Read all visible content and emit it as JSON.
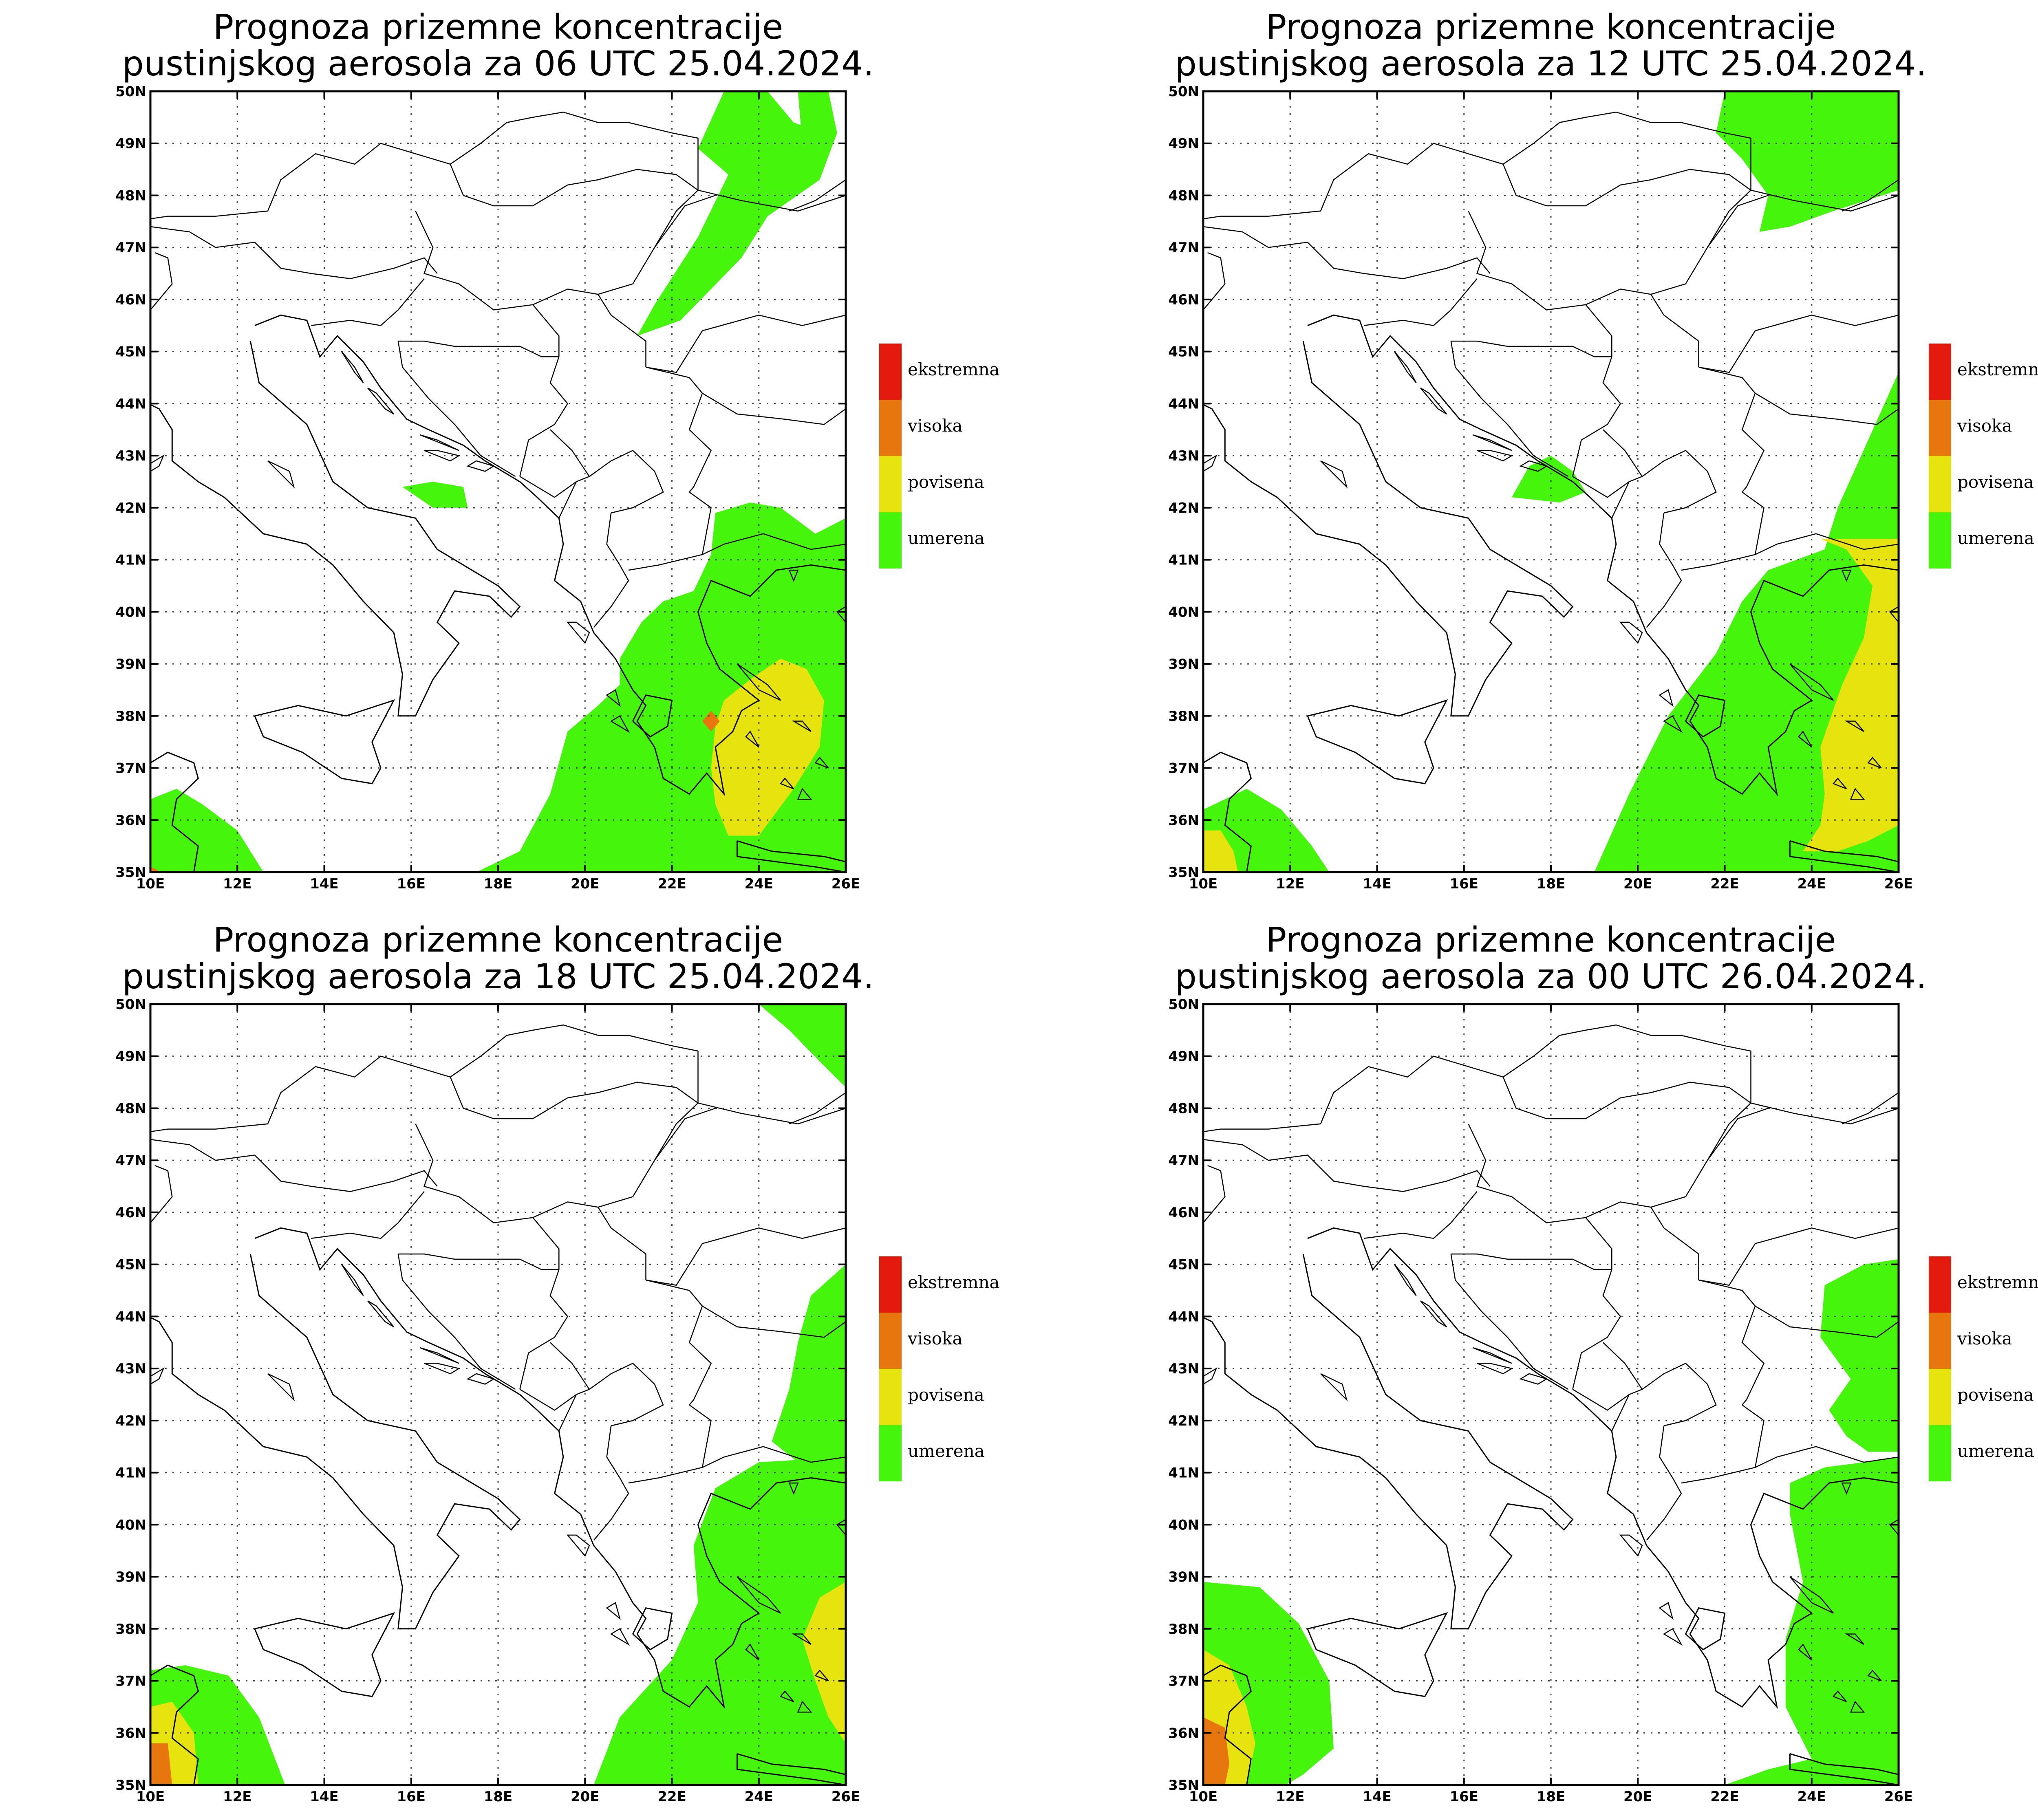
{
  "legend": {
    "categories": [
      {
        "label": "ekstremna",
        "color": "#e41a0f"
      },
      {
        "label": "visoka",
        "color": "#e8760e"
      },
      {
        "label": "povisena",
        "color": "#e6e30f"
      },
      {
        "label": "umerena",
        "color": "#45f50c"
      }
    ]
  },
  "axes": {
    "lat_ticks": [
      "35N",
      "36N",
      "37N",
      "38N",
      "39N",
      "40N",
      "41N",
      "42N",
      "43N",
      "44N",
      "45N",
      "46N",
      "47N",
      "48N",
      "49N",
      "50N"
    ],
    "lon_ticks": [
      "10E",
      "12E",
      "14E",
      "16E",
      "18E",
      "20E",
      "22E",
      "24E",
      "26E"
    ],
    "lat_range": [
      35,
      50
    ],
    "lon_range": [
      10,
      26
    ]
  },
  "panels": [
    {
      "title_line1": "Prognoza prizemne koncentracije",
      "title_line2": "pustinjskog aerosola za 06 UTC 25.04.2024.",
      "regions": [
        {
          "category": "umerena",
          "ring": [
            [
              21.2,
              45.3
            ],
            [
              21.6,
              45.9
            ],
            [
              22.6,
              47.2
            ],
            [
              23.3,
              48.4
            ],
            [
              22.6,
              48.9
            ],
            [
              23.2,
              50
            ],
            [
              24.2,
              50
            ],
            [
              24.8,
              49.4
            ],
            [
              25.5,
              49.2
            ],
            [
              25.0,
              49.0
            ],
            [
              24.9,
              50
            ],
            [
              25.6,
              50
            ],
            [
              25.8,
              49.2
            ],
            [
              25.4,
              48.3
            ],
            [
              24.2,
              47.6
            ],
            [
              23.6,
              46.8
            ],
            [
              22.2,
              45.6
            ]
          ]
        },
        {
          "category": "umerena",
          "ring": [
            [
              15.8,
              42.4
            ],
            [
              16.5,
              42.5
            ],
            [
              17.2,
              42.4
            ],
            [
              17.3,
              42.0
            ],
            [
              16.5,
              42.0
            ]
          ]
        },
        {
          "category": "umerena",
          "ring": [
            [
              10,
              35
            ],
            [
              10,
              36.4
            ],
            [
              10.6,
              36.6
            ],
            [
              11.2,
              36.3
            ],
            [
              12.0,
              35.8
            ],
            [
              12.6,
              35.0
            ]
          ]
        },
        {
          "category": "umerena",
          "ring": [
            [
              17.5,
              35
            ],
            [
              18.5,
              35.4
            ],
            [
              19.2,
              36.5
            ],
            [
              19.6,
              37.7
            ],
            [
              20.3,
              38.2
            ],
            [
              20.8,
              38.6
            ],
            [
              20.8,
              39.1
            ],
            [
              21.3,
              39.8
            ],
            [
              21.8,
              40.2
            ],
            [
              22.5,
              40.4
            ],
            [
              22.9,
              41.1
            ],
            [
              23.0,
              41.9
            ],
            [
              23.8,
              42.1
            ],
            [
              24.5,
              42.0
            ],
            [
              25.3,
              41.5
            ],
            [
              26,
              41.8
            ],
            [
              26,
              35
            ]
          ]
        },
        {
          "category": "povisena",
          "ring": [
            [
              23.0,
              37.8
            ],
            [
              23.2,
              38.3
            ],
            [
              23.8,
              38.7
            ],
            [
              24.5,
              39.1
            ],
            [
              25.1,
              38.9
            ],
            [
              25.5,
              38.3
            ],
            [
              25.4,
              37.4
            ],
            [
              24.8,
              36.6
            ],
            [
              24.0,
              35.7
            ],
            [
              23.3,
              35.7
            ],
            [
              23.0,
              36.3
            ],
            [
              22.9,
              37.0
            ]
          ]
        },
        {
          "category": "visoka",
          "ring": [
            [
              22.7,
              37.9
            ],
            [
              22.9,
              38.1
            ],
            [
              23.1,
              37.9
            ],
            [
              22.9,
              37.7
            ]
          ]
        },
        {
          "category": "visoka",
          "ring": [
            [
              10,
              35
            ],
            [
              10,
              35.1
            ],
            [
              10.15,
              35.05
            ],
            [
              10.2,
              35
            ]
          ]
        }
      ]
    },
    {
      "title_line1": "Prognoza prizemne koncentracije",
      "title_line2": "pustinjskog aerosola za 12 UTC 25.04.2024.",
      "regions": [
        {
          "category": "umerena",
          "ring": [
            [
              22.0,
              50
            ],
            [
              21.8,
              49.2
            ],
            [
              22.4,
              48.7
            ],
            [
              23.0,
              48.0
            ],
            [
              22.8,
              47.3
            ],
            [
              23.5,
              47.4
            ],
            [
              24.5,
              47.7
            ],
            [
              26,
              48.1
            ],
            [
              26,
              50
            ]
          ]
        },
        {
          "category": "umerena",
          "ring": [
            [
              17.1,
              42.2
            ],
            [
              17.5,
              42.8
            ],
            [
              18.0,
              43.0
            ],
            [
              18.5,
              42.7
            ],
            [
              18.8,
              42.3
            ],
            [
              18.2,
              42.1
            ]
          ]
        },
        {
          "category": "umerena",
          "ring": [
            [
              19.0,
              35
            ],
            [
              19.8,
              36.5
            ],
            [
              20.7,
              38.0
            ],
            [
              21.8,
              39.2
            ],
            [
              22.4,
              40.2
            ],
            [
              23.0,
              40.8
            ],
            [
              24.3,
              41.2
            ],
            [
              24.6,
              42.0
            ],
            [
              25.3,
              43.3
            ],
            [
              26,
              44.6
            ],
            [
              26,
              35
            ]
          ]
        },
        {
          "category": "povisena",
          "ring": [
            [
              24.2,
              41.4
            ],
            [
              24.8,
              41.2
            ],
            [
              25.4,
              40.5
            ],
            [
              25.2,
              39.5
            ],
            [
              24.7,
              38.6
            ],
            [
              24.2,
              37.4
            ],
            [
              24.3,
              36.5
            ],
            [
              24.2,
              35.9
            ],
            [
              23.8,
              35.4
            ],
            [
              24.6,
              35.4
            ],
            [
              25.3,
              35.6
            ],
            [
              26,
              35.9
            ],
            [
              26,
              41.4
            ]
          ]
        },
        {
          "category": "umerena",
          "ring": [
            [
              10,
              35
            ],
            [
              10,
              36.2
            ],
            [
              11.0,
              36.6
            ],
            [
              11.8,
              36.2
            ],
            [
              12.5,
              35.5
            ],
            [
              12.9,
              35
            ]
          ]
        },
        {
          "category": "povisena",
          "ring": [
            [
              10,
              35
            ],
            [
              10,
              35.8
            ],
            [
              10.4,
              35.8
            ],
            [
              10.7,
              35.4
            ],
            [
              10.8,
              35
            ]
          ]
        }
      ]
    },
    {
      "title_line1": "Prognoza prizemne koncentracije",
      "title_line2": "pustinjskog aerosola za 18 UTC 25.04.2024.",
      "regions": [
        {
          "category": "umerena",
          "ring": [
            [
              24.0,
              50
            ],
            [
              24.7,
              49.5
            ],
            [
              25.4,
              48.9
            ],
            [
              26,
              48.4
            ],
            [
              26,
              50
            ]
          ]
        },
        {
          "category": "umerena",
          "ring": [
            [
              26,
              45.0
            ],
            [
              25.2,
              44.4
            ],
            [
              24.9,
              43.5
            ],
            [
              24.7,
              42.6
            ],
            [
              24.3,
              41.6
            ],
            [
              24.9,
              41.2
            ],
            [
              26,
              41.3
            ]
          ]
        },
        {
          "category": "umerena",
          "ring": [
            [
              20.2,
              35
            ],
            [
              20.8,
              36.3
            ],
            [
              22.0,
              37.4
            ],
            [
              22.6,
              38.5
            ],
            [
              22.5,
              39.6
            ],
            [
              23.0,
              40.7
            ],
            [
              24.0,
              41.2
            ],
            [
              26,
              41.3
            ],
            [
              26,
              35
            ]
          ]
        },
        {
          "category": "povisena",
          "ring": [
            [
              26,
              38.9
            ],
            [
              25.4,
              38.6
            ],
            [
              25.0,
              37.8
            ],
            [
              25.3,
              37.0
            ],
            [
              25.6,
              36.3
            ],
            [
              26,
              35.8
            ]
          ]
        },
        {
          "category": "umerena",
          "ring": [
            [
              10,
              35
            ],
            [
              10,
              37.2
            ],
            [
              10.8,
              37.3
            ],
            [
              11.8,
              37.1
            ],
            [
              12.5,
              36.3
            ],
            [
              13.1,
              35
            ]
          ]
        },
        {
          "category": "povisena",
          "ring": [
            [
              10,
              35
            ],
            [
              10,
              36.5
            ],
            [
              10.5,
              36.6
            ],
            [
              11.0,
              36.0
            ],
            [
              11.1,
              35
            ]
          ]
        },
        {
          "category": "visoka",
          "ring": [
            [
              10,
              35
            ],
            [
              10,
              35.8
            ],
            [
              10.4,
              35.8
            ],
            [
              10.5,
              35
            ]
          ]
        }
      ]
    },
    {
      "title_line1": "Prognoza prizemne koncentracije",
      "title_line2": "pustinjskog aerosola za 00 UTC 26.04.2024.",
      "regions": [
        {
          "category": "umerena",
          "ring": [
            [
              26,
              45.1
            ],
            [
              25.2,
              45.0
            ],
            [
              24.3,
              44.6
            ],
            [
              24.2,
              43.6
            ],
            [
              24.9,
              42.8
            ],
            [
              24.4,
              42.2
            ],
            [
              24.8,
              41.7
            ],
            [
              25.3,
              41.4
            ],
            [
              26,
              41.4
            ]
          ]
        },
        {
          "category": "umerena",
          "ring": [
            [
              22.0,
              35
            ],
            [
              23.0,
              35.3
            ],
            [
              24.0,
              35.5
            ],
            [
              23.4,
              36.5
            ],
            [
              23.4,
              37.8
            ],
            [
              23.8,
              38.9
            ],
            [
              23.5,
              40.2
            ],
            [
              23.5,
              40.8
            ],
            [
              24.3,
              41.1
            ],
            [
              25.2,
              41.2
            ],
            [
              26,
              41.3
            ],
            [
              26,
              35
            ]
          ]
        },
        {
          "category": "umerena",
          "ring": [
            [
              10,
              35
            ],
            [
              10,
              38.9
            ],
            [
              11.3,
              38.8
            ],
            [
              12.2,
              38.1
            ],
            [
              12.9,
              37.0
            ],
            [
              13.0,
              35.7
            ],
            [
              12.3,
              35.2
            ],
            [
              11.9,
              35
            ]
          ]
        },
        {
          "category": "povisena",
          "ring": [
            [
              10,
              35
            ],
            [
              10,
              37.6
            ],
            [
              10.6,
              37.3
            ],
            [
              11.0,
              36.5
            ],
            [
              11.2,
              35.8
            ],
            [
              11.0,
              35
            ]
          ]
        },
        {
          "category": "visoka",
          "ring": [
            [
              10,
              35
            ],
            [
              10,
              36.3
            ],
            [
              10.5,
              36.1
            ],
            [
              10.6,
              35.4
            ],
            [
              10.5,
              35
            ]
          ]
        }
      ]
    }
  ]
}
